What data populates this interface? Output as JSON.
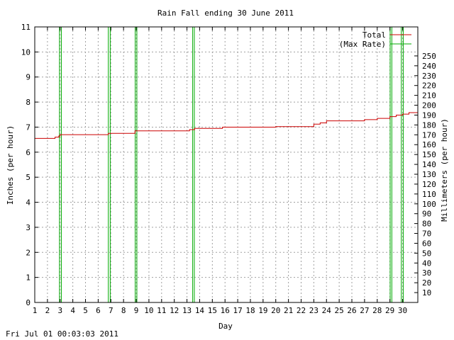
{
  "chart_data": {
    "type": "line",
    "title": "Rain Fall ending 30 June 2011",
    "xlabel": "Day",
    "ylabel": "Inches (per hour)",
    "y2label": "Millimeters (per hour)",
    "xlim": [
      1,
      31.2
    ],
    "ylim": [
      0,
      11
    ],
    "y2lim": [
      0,
      279.4
    ],
    "xticks": [
      1,
      2,
      3,
      4,
      5,
      6,
      7,
      8,
      9,
      10,
      11,
      12,
      13,
      14,
      15,
      16,
      17,
      18,
      19,
      20,
      21,
      22,
      23,
      24,
      25,
      26,
      27,
      28,
      29,
      30
    ],
    "yticks": [
      0,
      1,
      2,
      3,
      4,
      5,
      6,
      7,
      8,
      9,
      10,
      11
    ],
    "y2ticks": [
      10,
      20,
      30,
      40,
      50,
      60,
      70,
      80,
      90,
      100,
      110,
      120,
      130,
      140,
      150,
      160,
      170,
      180,
      190,
      200,
      210,
      220,
      230,
      240,
      250
    ],
    "grid": true,
    "legend_position": "top-right",
    "colors": {
      "total": "#cc0000",
      "max_rate": "#00aa00"
    },
    "series": [
      {
        "name": "Total",
        "style": "step",
        "x": [
          1,
          2.6,
          2.9,
          3.0,
          6.8,
          8.9,
          13.2,
          13.6,
          15.8,
          20.0,
          23.0,
          23.5,
          24.0,
          27.0,
          28.0,
          29.0,
          29.5,
          30.0,
          30.5,
          31.2
        ],
        "y": [
          6.55,
          6.6,
          6.65,
          6.7,
          6.75,
          6.85,
          6.9,
          6.95,
          7.0,
          7.02,
          7.12,
          7.17,
          7.25,
          7.3,
          7.35,
          7.42,
          7.48,
          7.52,
          7.58,
          7.6
        ]
      },
      {
        "name": "(Max Rate)",
        "style": "spikes",
        "x": [
          2.95,
          3.1,
          6.8,
          6.95,
          8.92,
          9.05,
          13.45,
          13.58,
          29.02,
          29.15,
          29.9,
          30.05
        ],
        "y": [
          11,
          11,
          11,
          11,
          11,
          11,
          11,
          11,
          11,
          11,
          11,
          11
        ]
      }
    ]
  },
  "footer": {
    "timestamp": "Fri Jul 01 00:03:03 2011"
  }
}
